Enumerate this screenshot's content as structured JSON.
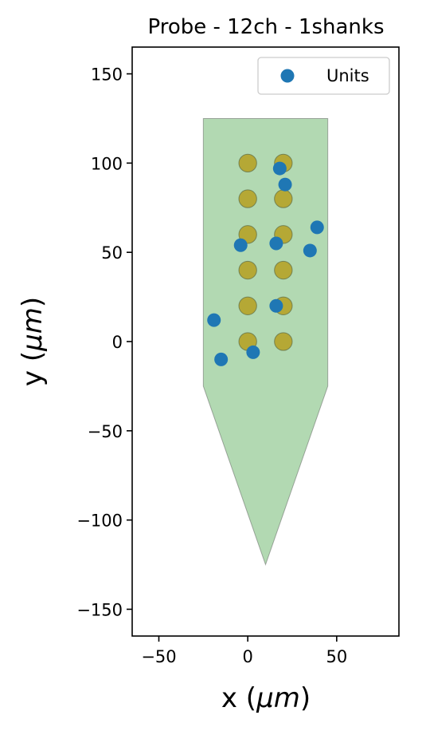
{
  "chart_data": {
    "type": "scatter",
    "title": "Probe - 12ch - 1shanks",
    "xlabel_prefix": "x (",
    "xlabel_mu": "μm",
    "xlabel_suffix": ")",
    "ylabel_prefix": "y (",
    "ylabel_mu": "μm",
    "ylabel_suffix": ")",
    "xlim": [
      -65,
      85
    ],
    "ylim": [
      -165,
      165
    ],
    "x_ticks": [
      -50,
      0,
      50
    ],
    "y_ticks": [
      -150,
      -100,
      -50,
      0,
      50,
      100,
      150
    ],
    "x_tick_labels": [
      "−50",
      "0",
      "50"
    ],
    "y_tick_labels": [
      "−150",
      "−100",
      "−50",
      "0",
      "50",
      "100",
      "150"
    ],
    "grid": false,
    "legend": {
      "position": "top-right",
      "entries": [
        "Units"
      ]
    },
    "probe_contour": [
      [
        -25,
        125
      ],
      [
        45,
        125
      ],
      [
        45,
        -25
      ],
      [
        10,
        -125
      ],
      [
        -25,
        -25
      ]
    ],
    "probe_color": "#b2d9b2",
    "contact_radius": 5,
    "contact_color": "#b5a835",
    "contacts": [
      {
        "x": 0,
        "y": 100
      },
      {
        "x": 20,
        "y": 100
      },
      {
        "x": 0,
        "y": 80
      },
      {
        "x": 20,
        "y": 80
      },
      {
        "x": 0,
        "y": 60
      },
      {
        "x": 20,
        "y": 60
      },
      {
        "x": 0,
        "y": 40
      },
      {
        "x": 20,
        "y": 40
      },
      {
        "x": 0,
        "y": 20
      },
      {
        "x": 20,
        "y": 20
      },
      {
        "x": 0,
        "y": 0
      },
      {
        "x": 20,
        "y": 0
      }
    ],
    "series": [
      {
        "name": "Units",
        "color": "#1f77b4",
        "points": [
          {
            "x": 18,
            "y": 97
          },
          {
            "x": 21,
            "y": 88
          },
          {
            "x": 39,
            "y": 64
          },
          {
            "x": -4,
            "y": 54
          },
          {
            "x": 16,
            "y": 55
          },
          {
            "x": 35,
            "y": 51
          },
          {
            "x": 16,
            "y": 20
          },
          {
            "x": -19,
            "y": 12
          },
          {
            "x": 3,
            "y": -6
          },
          {
            "x": -15,
            "y": -10
          }
        ]
      }
    ]
  }
}
